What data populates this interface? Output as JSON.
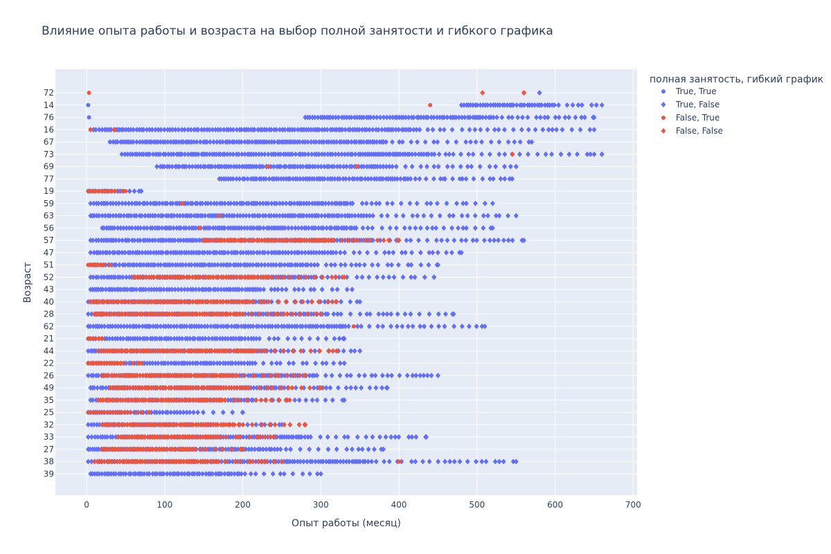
{
  "chart_data": {
    "type": "scatter",
    "title": "Влияние опыта работы и возраста на выбор полной занятости и гибкого графика",
    "xlabel": "Опыт работы (месяц)",
    "ylabel": "Возраст",
    "x_ticks": [
      0,
      100,
      200,
      300,
      400,
      500,
      600,
      700
    ],
    "xlim": [
      -40,
      705
    ],
    "y_categories": [
      "72",
      "14",
      "76",
      "16",
      "67",
      "73",
      "69",
      "77",
      "19",
      "59",
      "63",
      "56",
      "57",
      "47",
      "51",
      "52",
      "43",
      "40",
      "28",
      "62",
      "21",
      "44",
      "22",
      "26",
      "49",
      "35",
      "25",
      "32",
      "33",
      "27",
      "38",
      "39"
    ],
    "grid": true,
    "legend": {
      "title": "полная занятость, гибкий график",
      "placement": "right"
    },
    "series": [
      {
        "name": "True, True",
        "marker": "circle",
        "color": "#636efa",
        "points": [
          [
            2,
            "14"
          ],
          [
            3,
            "76"
          ],
          [
            30,
            "67"
          ],
          [
            282,
            "77"
          ],
          [
            457,
            "77"
          ],
          [
            478,
            "77"
          ]
        ]
      },
      {
        "name": "True, False",
        "marker": "diamond",
        "color": "#636efa",
        "ranges": [
          {
            "cat": "72",
            "from": 580,
            "to": 580
          },
          {
            "cat": "14",
            "from": 480,
            "to": 660
          },
          {
            "cat": "76",
            "from": 280,
            "to": 650
          },
          {
            "cat": "16",
            "from": 5,
            "to": 650
          },
          {
            "cat": "67",
            "from": 30,
            "to": 570
          },
          {
            "cat": "73",
            "from": 45,
            "to": 660
          },
          {
            "cat": "69",
            "from": 90,
            "to": 550
          },
          {
            "cat": "77",
            "from": 170,
            "to": 545
          },
          {
            "cat": "19",
            "from": 2,
            "to": 70
          },
          {
            "cat": "59",
            "from": 5,
            "to": 520
          },
          {
            "cat": "63",
            "from": 5,
            "to": 550
          },
          {
            "cat": "56",
            "from": 20,
            "to": 520
          },
          {
            "cat": "57",
            "from": 5,
            "to": 560
          },
          {
            "cat": "47",
            "from": 5,
            "to": 480
          },
          {
            "cat": "51",
            "from": 5,
            "to": 450
          },
          {
            "cat": "52",
            "from": 5,
            "to": 445
          },
          {
            "cat": "43",
            "from": 5,
            "to": 340
          },
          {
            "cat": "40",
            "from": 2,
            "to": 350
          },
          {
            "cat": "28",
            "from": 2,
            "to": 470
          },
          {
            "cat": "62",
            "from": 2,
            "to": 510
          },
          {
            "cat": "21",
            "from": 2,
            "to": 330
          },
          {
            "cat": "44",
            "from": 2,
            "to": 350
          },
          {
            "cat": "22",
            "from": 2,
            "to": 330
          },
          {
            "cat": "26",
            "from": 2,
            "to": 450
          },
          {
            "cat": "49",
            "from": 5,
            "to": 385
          },
          {
            "cat": "35",
            "from": 5,
            "to": 330
          },
          {
            "cat": "25",
            "from": 2,
            "to": 200
          },
          {
            "cat": "32",
            "from": 2,
            "to": 250
          },
          {
            "cat": "33",
            "from": 2,
            "to": 435
          },
          {
            "cat": "27",
            "from": 2,
            "to": 380
          },
          {
            "cat": "38",
            "from": 2,
            "to": 550
          },
          {
            "cat": "39",
            "from": 5,
            "to": 300
          }
        ]
      },
      {
        "name": "False, True",
        "marker": "circle",
        "color": "#ef553b",
        "points": [
          [
            3,
            "72"
          ],
          [
            5,
            "16"
          ],
          [
            232,
            "69"
          ],
          [
            346,
            "69"
          ],
          [
            545,
            "73"
          ],
          [
            560,
            "72"
          ],
          [
            122,
            "59"
          ],
          [
            170,
            "63"
          ],
          [
            145,
            "56"
          ],
          [
            180,
            "57"
          ],
          [
            440,
            "14"
          ],
          [
            342,
            "62"
          ],
          [
            400,
            "38"
          ]
        ],
        "ranges": [
          {
            "cat": "19",
            "from": 2,
            "to": 50
          },
          {
            "cat": "51",
            "from": 2,
            "to": 30
          },
          {
            "cat": "22",
            "from": 2,
            "to": 70
          },
          {
            "cat": "21",
            "from": 2,
            "to": 20
          },
          {
            "cat": "25",
            "from": 2,
            "to": 80
          }
        ]
      },
      {
        "name": "False, False",
        "marker": "diamond",
        "color": "#ef553b",
        "points": [
          [
            35,
            "16"
          ],
          [
            507,
            "72"
          ],
          [
            560,
            "72"
          ]
        ],
        "ranges": [
          {
            "cat": "40",
            "from": 5,
            "to": 320
          },
          {
            "cat": "28",
            "from": 10,
            "to": 300
          },
          {
            "cat": "44",
            "from": 15,
            "to": 320
          },
          {
            "cat": "26",
            "from": 20,
            "to": 280
          },
          {
            "cat": "49",
            "from": 30,
            "to": 300
          },
          {
            "cat": "35",
            "from": 15,
            "to": 260
          },
          {
            "cat": "32",
            "from": 20,
            "to": 280
          },
          {
            "cat": "33",
            "from": 40,
            "to": 240
          },
          {
            "cat": "27",
            "from": 20,
            "to": 200
          },
          {
            "cat": "38",
            "from": 10,
            "to": 250
          },
          {
            "cat": "52",
            "from": 60,
            "to": 330
          },
          {
            "cat": "57",
            "from": 150,
            "to": 400
          }
        ]
      }
    ]
  }
}
